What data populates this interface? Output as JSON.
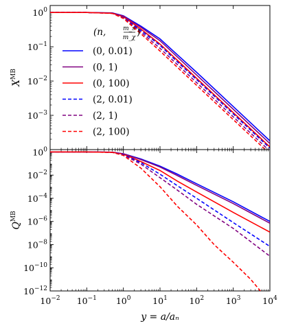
{
  "chart_data": [
    {
      "type": "line",
      "panel": "top",
      "ylabel": "X",
      "ylabel_sup": "MB",
      "xscale": "log",
      "yscale": "log",
      "xlim": [
        0.01,
        10000
      ],
      "ylim": [
        0.0001,
        1.6
      ],
      "y_ticks": [
        {
          "base": "10",
          "exp": "0"
        },
        {
          "base": "10",
          "exp": "−1"
        },
        {
          "base": "10",
          "exp": "−2"
        },
        {
          "base": "10",
          "exp": "−3"
        }
      ],
      "y_tick_values": [
        1,
        0.1,
        0.01,
        0.001
      ],
      "legend": {
        "title_prefix": "(n, ",
        "title_frac_num": "m_s",
        "title_frac_den": "m_χ",
        "title_suffix": ")",
        "placement": "upper-left",
        "entries": [
          {
            "label": "(0, 0.01)",
            "color": "#0000ff",
            "dash": "solid"
          },
          {
            "label": "(0, 1)",
            "color": "#800080",
            "dash": "solid"
          },
          {
            "label": "(0, 100)",
            "color": "#ff0000",
            "dash": "solid"
          },
          {
            "label": "(2, 0.01)",
            "color": "#0000ff",
            "dash": "dashed"
          },
          {
            "label": "(2, 1)",
            "color": "#800080",
            "dash": "dashed"
          },
          {
            "label": "(2, 100)",
            "color": "#ff0000",
            "dash": "dashed"
          }
        ]
      },
      "series": [
        {
          "legend_index": 0,
          "color": "#0000ff",
          "dash": "solid",
          "points": [
            [
              0.01,
              1
            ],
            [
              0.1,
              1
            ],
            [
              0.5,
              0.97
            ],
            [
              1,
              0.8
            ],
            [
              3,
              0.4
            ],
            [
              10,
              0.17
            ],
            [
              30,
              0.058
            ],
            [
              100,
              0.018
            ],
            [
              1000,
              0.0018
            ],
            [
              10000,
              0.00018
            ]
          ]
        },
        {
          "legend_index": 1,
          "color": "#800080",
          "dash": "solid",
          "points": [
            [
              0.01,
              1
            ],
            [
              0.1,
              1
            ],
            [
              0.5,
              0.96
            ],
            [
              1,
              0.78
            ],
            [
              3,
              0.37
            ],
            [
              10,
              0.15
            ],
            [
              30,
              0.05
            ],
            [
              100,
              0.015
            ],
            [
              1000,
              0.0015
            ],
            [
              10000,
              0.00015
            ]
          ]
        },
        {
          "legend_index": 2,
          "color": "#ff0000",
          "dash": "solid",
          "points": [
            [
              0.01,
              1
            ],
            [
              0.1,
              1
            ],
            [
              0.5,
              0.95
            ],
            [
              1,
              0.75
            ],
            [
              3,
              0.33
            ],
            [
              10,
              0.12
            ],
            [
              30,
              0.04
            ],
            [
              100,
              0.012
            ],
            [
              1000,
              0.0012
            ],
            [
              10000,
              0.00012
            ]
          ]
        },
        {
          "legend_index": 3,
          "color": "#0000ff",
          "dash": "dashed",
          "points": [
            [
              0.01,
              1
            ],
            [
              0.1,
              1
            ],
            [
              0.5,
              0.95
            ],
            [
              1,
              0.72
            ],
            [
              3,
              0.3
            ],
            [
              10,
              0.11
            ],
            [
              30,
              0.036
            ],
            [
              100,
              0.011
            ],
            [
              1000,
              0.0011
            ],
            [
              10000,
              0.00011
            ]
          ]
        },
        {
          "legend_index": 4,
          "color": "#800080",
          "dash": "dashed",
          "points": [
            [
              0.01,
              1
            ],
            [
              0.1,
              1
            ],
            [
              0.5,
              0.95
            ],
            [
              1,
              0.7
            ],
            [
              3,
              0.27
            ],
            [
              10,
              0.09
            ],
            [
              30,
              0.03
            ],
            [
              100,
              0.009
            ],
            [
              1000,
              0.0009
            ],
            [
              10000,
              9e-05
            ]
          ]
        },
        {
          "legend_index": 5,
          "color": "#ff0000",
          "dash": "dashed",
          "points": [
            [
              0.01,
              1
            ],
            [
              0.1,
              1
            ],
            [
              0.5,
              0.94
            ],
            [
              1,
              0.67
            ],
            [
              3,
              0.24
            ],
            [
              10,
              0.075
            ],
            [
              30,
              0.025
            ],
            [
              100,
              0.0075
            ],
            [
              1000,
              0.00075
            ],
            [
              10000,
              7.5e-05
            ]
          ]
        }
      ]
    },
    {
      "type": "line",
      "panel": "bottom",
      "ylabel": "Q",
      "ylabel_sup": "MB",
      "xlabel": "y = a/a_n",
      "xscale": "log",
      "yscale": "log",
      "xlim": [
        0.01,
        10000
      ],
      "ylim": [
        1e-12,
        1.6
      ],
      "x_ticks": [
        {
          "base": "10",
          "exp": "−2"
        },
        {
          "base": "10",
          "exp": "−1"
        },
        {
          "base": "10",
          "exp": "0"
        },
        {
          "base": "10",
          "exp": "1"
        },
        {
          "base": "10",
          "exp": "2"
        },
        {
          "base": "10",
          "exp": "3"
        },
        {
          "base": "10",
          "exp": "4"
        }
      ],
      "x_tick_values": [
        0.01,
        0.1,
        1,
        10,
        100,
        1000,
        10000
      ],
      "y_ticks": [
        {
          "base": "10",
          "exp": "0"
        },
        {
          "base": "10",
          "exp": "−2"
        },
        {
          "base": "10",
          "exp": "−4"
        },
        {
          "base": "10",
          "exp": "−6"
        },
        {
          "base": "10",
          "exp": "−8"
        },
        {
          "base": "10",
          "exp": "−10"
        },
        {
          "base": "10",
          "exp": "−12"
        }
      ],
      "y_tick_values": [
        1,
        0.01,
        0.0001,
        1e-06,
        1e-08,
        1e-10,
        1e-12
      ],
      "series": [
        {
          "legend_index": 0,
          "color": "#0000ff",
          "dash": "solid",
          "points": [
            [
              0.01,
              1
            ],
            [
              0.1,
              1
            ],
            [
              0.5,
              0.95
            ],
            [
              1,
              0.7
            ],
            [
              3,
              0.25
            ],
            [
              10,
              0.06
            ],
            [
              30,
              0.012
            ],
            [
              100,
              0.0018
            ],
            [
              1000,
              5e-05
            ],
            [
              10000,
              1e-06
            ]
          ]
        },
        {
          "legend_index": 1,
          "color": "#800080",
          "dash": "solid",
          "points": [
            [
              0.01,
              1
            ],
            [
              0.1,
              1
            ],
            [
              0.5,
              0.95
            ],
            [
              1,
              0.68
            ],
            [
              3,
              0.22
            ],
            [
              10,
              0.05
            ],
            [
              30,
              0.009
            ],
            [
              100,
              0.0013
            ],
            [
              1000,
              3.5e-05
            ],
            [
              10000,
              7e-07
            ]
          ]
        },
        {
          "legend_index": 2,
          "color": "#ff0000",
          "dash": "solid",
          "points": [
            [
              0.01,
              1
            ],
            [
              0.1,
              1
            ],
            [
              0.5,
              0.94
            ],
            [
              1,
              0.65
            ],
            [
              3,
              0.15
            ],
            [
              10,
              0.025
            ],
            [
              30,
              0.003
            ],
            [
              100,
              0.00035
            ],
            [
              1000,
              6e-06
            ],
            [
              10000,
              1.2e-07
            ]
          ]
        },
        {
          "legend_index": 3,
          "color": "#0000ff",
          "dash": "dashed",
          "points": [
            [
              0.01,
              1
            ],
            [
              0.1,
              1
            ],
            [
              0.5,
              0.94
            ],
            [
              1,
              0.6
            ],
            [
              3,
              0.12
            ],
            [
              10,
              0.012
            ],
            [
              30,
              0.0012
            ],
            [
              100,
              0.0001
            ],
            [
              1000,
              8e-07
            ],
            [
              10000,
              7e-09
            ]
          ]
        },
        {
          "legend_index": 4,
          "color": "#800080",
          "dash": "dashed",
          "points": [
            [
              0.01,
              1
            ],
            [
              0.1,
              1
            ],
            [
              0.5,
              0.93
            ],
            [
              1,
              0.55
            ],
            [
              3,
              0.09
            ],
            [
              10,
              0.006
            ],
            [
              30,
              0.0005
            ],
            [
              100,
              3e-05
            ],
            [
              1000,
              2.5e-07
            ],
            [
              10000,
              1e-09
            ]
          ]
        },
        {
          "legend_index": 5,
          "color": "#ff0000",
          "dash": "dashed",
          "points": [
            [
              0.01,
              1
            ],
            [
              0.1,
              1
            ],
            [
              0.5,
              0.92
            ],
            [
              1,
              0.5
            ],
            [
              3,
              0.04
            ],
            [
              10,
              0.001
            ],
            [
              30,
              2e-05
            ],
            [
              100,
              5e-07
            ],
            [
              300,
              1e-08
            ],
            [
              1000,
              3e-10
            ],
            [
              3000,
              1e-11
            ],
            [
              5500,
              1e-12
            ]
          ]
        }
      ]
    }
  ]
}
